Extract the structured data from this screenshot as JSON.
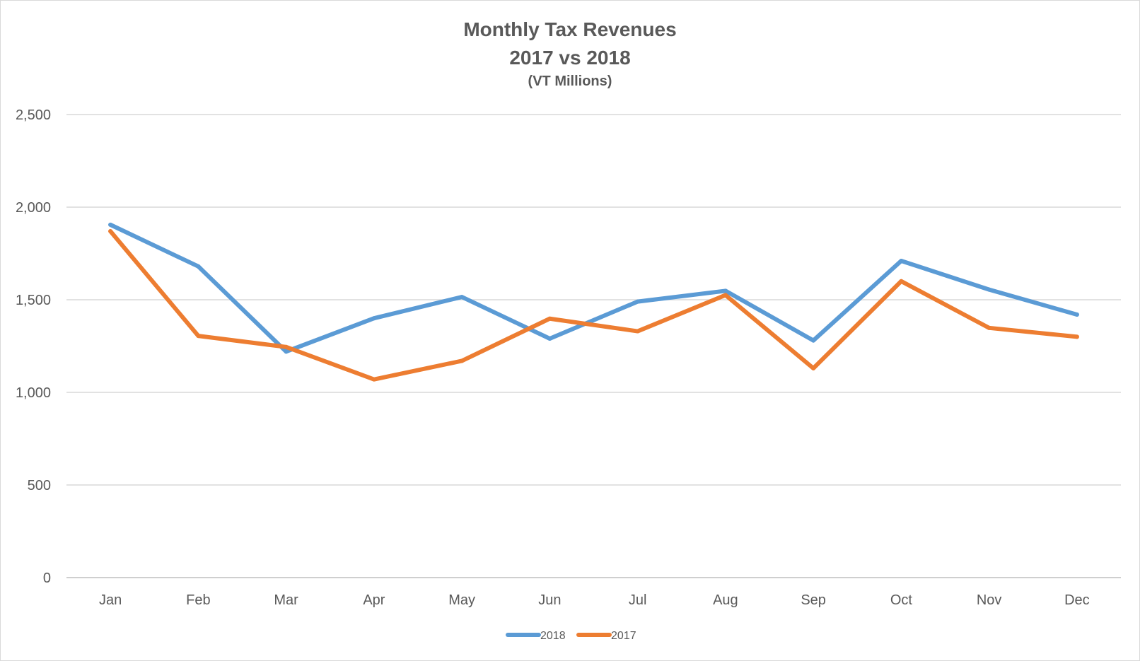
{
  "chart_data": {
    "type": "line",
    "title": "Monthly Tax Revenues",
    "title_line2": "2017 vs 2018",
    "subtitle": "(VT Millions)",
    "xlabel": "",
    "ylabel": "",
    "categories": [
      "Jan",
      "Feb",
      "Mar",
      "Apr",
      "May",
      "Jun",
      "Jul",
      "Aug",
      "Sep",
      "Oct",
      "Nov",
      "Dec"
    ],
    "ylim": [
      0,
      2500
    ],
    "yticks": [
      0,
      500,
      1000,
      1500,
      2000,
      2500
    ],
    "ytick_labels": [
      "0",
      "500",
      "1,000",
      "1,500",
      "2,000",
      "2,500"
    ],
    "grid": true,
    "legend_position": "bottom",
    "series": [
      {
        "name": "2018",
        "color": "#5b9bd5",
        "values": [
          1905,
          1680,
          1220,
          1400,
          1515,
          1290,
          1490,
          1548,
          1280,
          1710,
          1555,
          1420
        ]
      },
      {
        "name": "2017",
        "color": "#ed7d31",
        "values": [
          1870,
          1305,
          1245,
          1070,
          1170,
          1398,
          1330,
          1525,
          1130,
          1600,
          1348,
          1300
        ]
      }
    ]
  }
}
